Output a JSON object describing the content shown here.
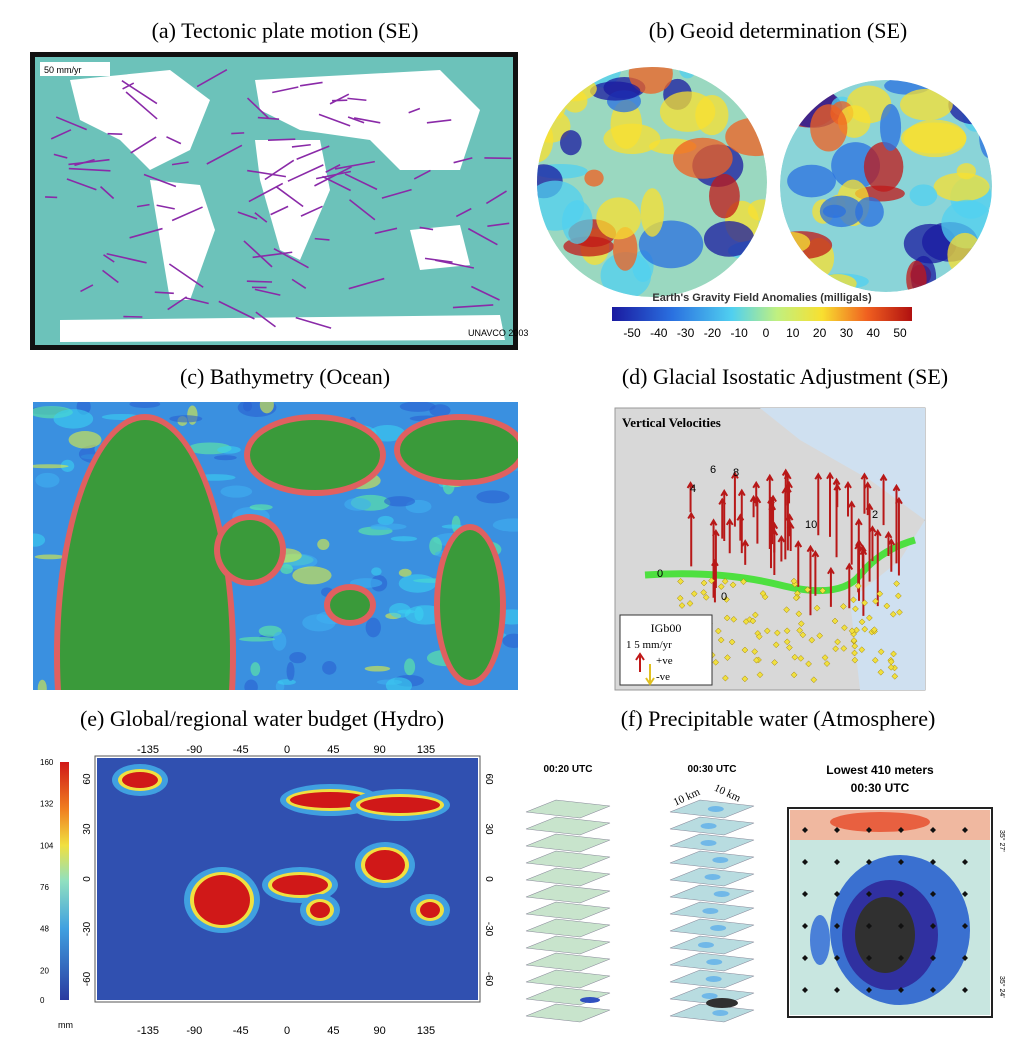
{
  "panels": [
    {
      "title": "(a) Tectonic plate motion (SE)",
      "scale_label": "50 mm/yr",
      "credit": "UNAVCO 2003"
    },
    {
      "title": "(b) Geoid determination (SE)",
      "colorbar_label": "Earth's Gravity Field Anomalies (milligals)",
      "colorbar_ticks": [
        -50,
        -40,
        -30,
        -20,
        -10,
        0,
        10,
        20,
        30,
        40,
        50
      ]
    },
    {
      "title": "(c) Bathymetry (Ocean)"
    },
    {
      "title": "(d) Glacial Isostatic Adjustment (SE)",
      "map_title": "Vertical Velocities",
      "contour_labels": [
        "4",
        "6",
        "8",
        "10",
        "2",
        "0",
        "0"
      ],
      "legend": {
        "title": "IGb00",
        "scale": "1    5 mm/yr",
        "up": "+ve",
        "down": "-ve"
      }
    },
    {
      "title": "(e) Global/regional water budget (Hydro)",
      "colorbar_ticks": [
        160,
        132,
        104,
        76,
        48,
        20,
        0
      ],
      "colorbar_unit": "mm",
      "lon_ticks": [
        -135,
        -90,
        -45,
        0,
        45,
        90,
        135
      ],
      "lat_ticks": [
        60,
        30,
        0,
        -30,
        -60
      ]
    },
    {
      "title": "(f) Precipitable water (Atmosphere)",
      "stack_times": [
        "00:20 UTC",
        "00:30 UTC"
      ],
      "layer_labels": [
        "10 km",
        "10 km"
      ],
      "map_title": "Lowest 410 meters",
      "map_time": "00:30 UTC",
      "map_lat_ticks": [
        "35° 27'",
        "35° 24'"
      ]
    }
  ]
}
